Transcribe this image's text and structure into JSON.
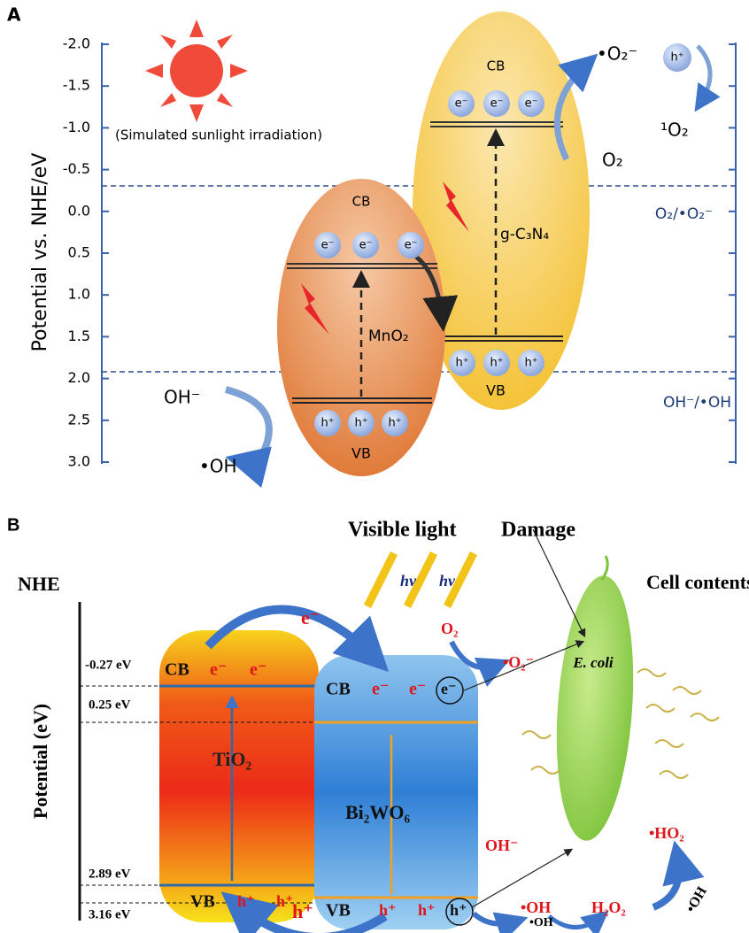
{
  "panel_a": {
    "label": "A",
    "axis_title": "Potential vs. NHE/eV",
    "axis_ticks": [
      "-2.0",
      "-1.5",
      "-1.0",
      "-0.5",
      "0.0",
      "0.5",
      "1.0",
      "1.5",
      "2.0",
      "2.5",
      "3.0"
    ],
    "caption": "(Simulated sunlight irradiation)",
    "mno2": {
      "name": "MnO₂",
      "cb": "CB",
      "vb": "VB",
      "electrons": [
        "e⁻",
        "e⁻",
        "e⁻"
      ],
      "holes": [
        "h⁺",
        "h⁺",
        "h⁺"
      ]
    },
    "gc3n4": {
      "name": "g-C₃N₄",
      "cb": "CB",
      "vb": "VB",
      "electrons": [
        "e⁻",
        "e⁻",
        "e⁻"
      ],
      "holes": [
        "h⁺",
        "h⁺",
        "h⁺"
      ]
    },
    "superoxide": "•O₂⁻",
    "hole": "h⁺",
    "singlet_oxygen": "¹O₂",
    "oxygen": "O₂",
    "hydroxide": "OH⁻",
    "hydroxyl": "•OH",
    "level_o2": "O₂/•O₂⁻",
    "level_oh": "OH⁻/•OH"
  },
  "panel_b": {
    "label": "B",
    "visible_light": "Visible light",
    "damage": "Damage",
    "nhe": "NHE",
    "cell_contents": "Cell contents",
    "axis_title": "Potential (eV)",
    "levels": [
      "-0.27 eV",
      "0.25 eV",
      "2.89 eV",
      "3.16 eV"
    ],
    "photons": [
      "hν",
      "hν"
    ],
    "tio2": {
      "name": "TiO₂",
      "cb": "CB",
      "vb": "VB",
      "electrons": [
        "e⁻",
        "e⁻"
      ],
      "holes": [
        "h⁺",
        "h⁺"
      ]
    },
    "bi2wo6": {
      "name": "Bi₂WO₆",
      "cb": "CB",
      "vb": "VB",
      "electrons": [
        "e⁻",
        "e⁻",
        "e⁻"
      ],
      "holes": [
        "h⁺",
        "h⁺",
        "h⁺"
      ]
    },
    "transfer_e": "e⁻",
    "transfer_h": "h⁺",
    "oxygen": "O₂",
    "superoxide": "•O₂⁻",
    "hydroxide": "OH⁻",
    "hydroxyl": "•OH",
    "hydroxyl_2": "•OH",
    "peroxide": "H₂O₂",
    "hydroperoxyl": "•HO₂",
    "hydroxyl_3": "•OH",
    "bacterium": "E. coli"
  }
}
